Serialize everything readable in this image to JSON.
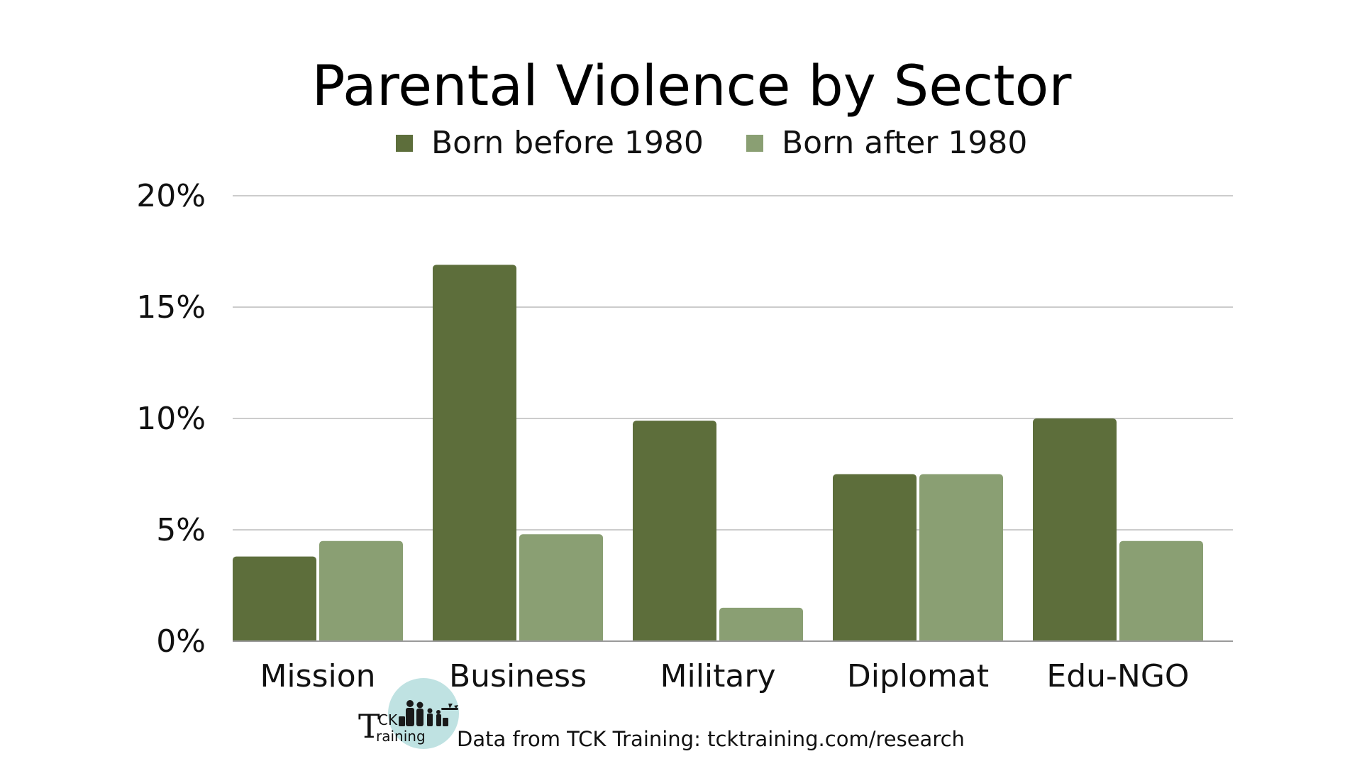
{
  "chart_data": {
    "type": "bar",
    "title": "Parental Violence by Sector",
    "categories": [
      "Mission",
      "Business",
      "Military",
      "Diplomat",
      "Edu-NGO"
    ],
    "series": [
      {
        "name": "Born before 1980",
        "color": "#5d6e3b",
        "values": [
          3.8,
          16.9,
          9.9,
          7.5,
          10.0
        ]
      },
      {
        "name": "Born after 1980",
        "color": "#8a9f73",
        "values": [
          4.5,
          4.8,
          1.5,
          7.5,
          4.5
        ]
      }
    ],
    "y_ticks": [
      "0%",
      "5%",
      "10%",
      "15%",
      "20%"
    ],
    "ylim": [
      0,
      20
    ],
    "grid": true,
    "legend_position": "top-center",
    "gridline_color": "#cccccc"
  },
  "source": "Data from TCK Training: tcktraining.com/research",
  "logo": {
    "big_letter": "T",
    "ck": "CK",
    "raining": "raining",
    "circle_color": "#bfe2e2"
  }
}
